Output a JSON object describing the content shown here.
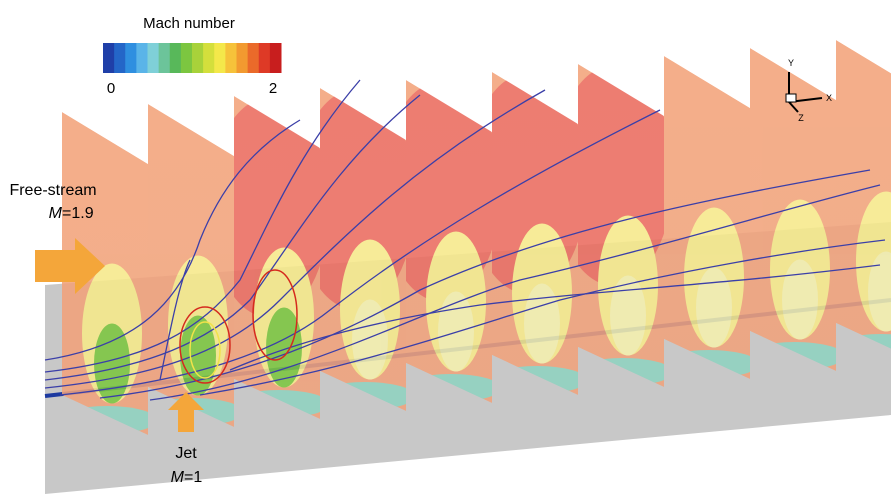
{
  "colorbar": {
    "title": "Mach number",
    "min": 0,
    "max": 2,
    "colors": [
      "#1f3fa8",
      "#2466c8",
      "#2f8fe0",
      "#5ab4e8",
      "#7fd0d8",
      "#6cc49a",
      "#58b85a",
      "#7cc640",
      "#a8d23a",
      "#d4df3c",
      "#f4e84a",
      "#f6c23a",
      "#f29a30",
      "#ea6a2a",
      "#de3a26",
      "#c81e1e"
    ]
  },
  "free_stream": {
    "label": "Free-stream",
    "symbol": "M",
    "value": "=1.9"
  },
  "jet": {
    "label": "Jet",
    "symbol": "M",
    "value": "=1"
  },
  "axes": {
    "y": "Y",
    "x": "X",
    "z": "Z"
  }
}
